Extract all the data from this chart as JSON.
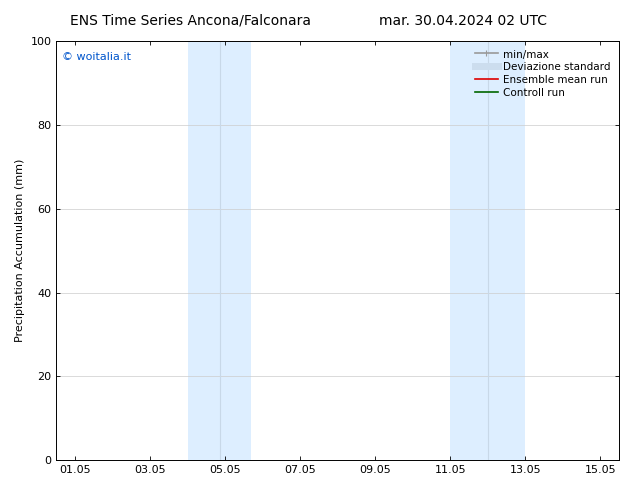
{
  "title_left": "ENS Time Series Ancona/Falconara",
  "title_right": "mar. 30.04.2024 02 UTC",
  "ylabel": "Precipitation Accumulation (mm)",
  "ylim": [
    0,
    100
  ],
  "yticks": [
    0,
    20,
    40,
    60,
    80,
    100
  ],
  "xtick_labels": [
    "01.05",
    "03.05",
    "05.05",
    "07.05",
    "09.05",
    "11.05",
    "13.05",
    "15.05"
  ],
  "xtick_positions": [
    1,
    3,
    5,
    7,
    9,
    11,
    13,
    15
  ],
  "xlim": [
    0.5,
    15.5
  ],
  "shade_bands": [
    {
      "xmin": 4.0,
      "xmax": 5.7,
      "color": "#ddeeff"
    },
    {
      "xmin": 11.0,
      "xmax": 13.0,
      "color": "#ddeeff"
    }
  ],
  "shade_dividers": [
    {
      "x": 4.85,
      "band": 0
    },
    {
      "x": 12.0,
      "band": 1
    }
  ],
  "watermark": "© woitalia.it",
  "watermark_color": "#0055cc",
  "legend_entries": [
    {
      "label": "min/max",
      "color": "#999999",
      "lw": 1.2
    },
    {
      "label": "Deviazione standard",
      "color": "#ccddee",
      "lw": 5.0
    },
    {
      "label": "Ensemble mean run",
      "color": "#dd0000",
      "lw": 1.2
    },
    {
      "label": "Controll run",
      "color": "#006600",
      "lw": 1.2
    }
  ],
  "bg_color": "#ffffff",
  "grid_color": "#cccccc",
  "title_fontsize": 10,
  "label_fontsize": 8,
  "tick_fontsize": 8,
  "legend_fontsize": 7.5
}
